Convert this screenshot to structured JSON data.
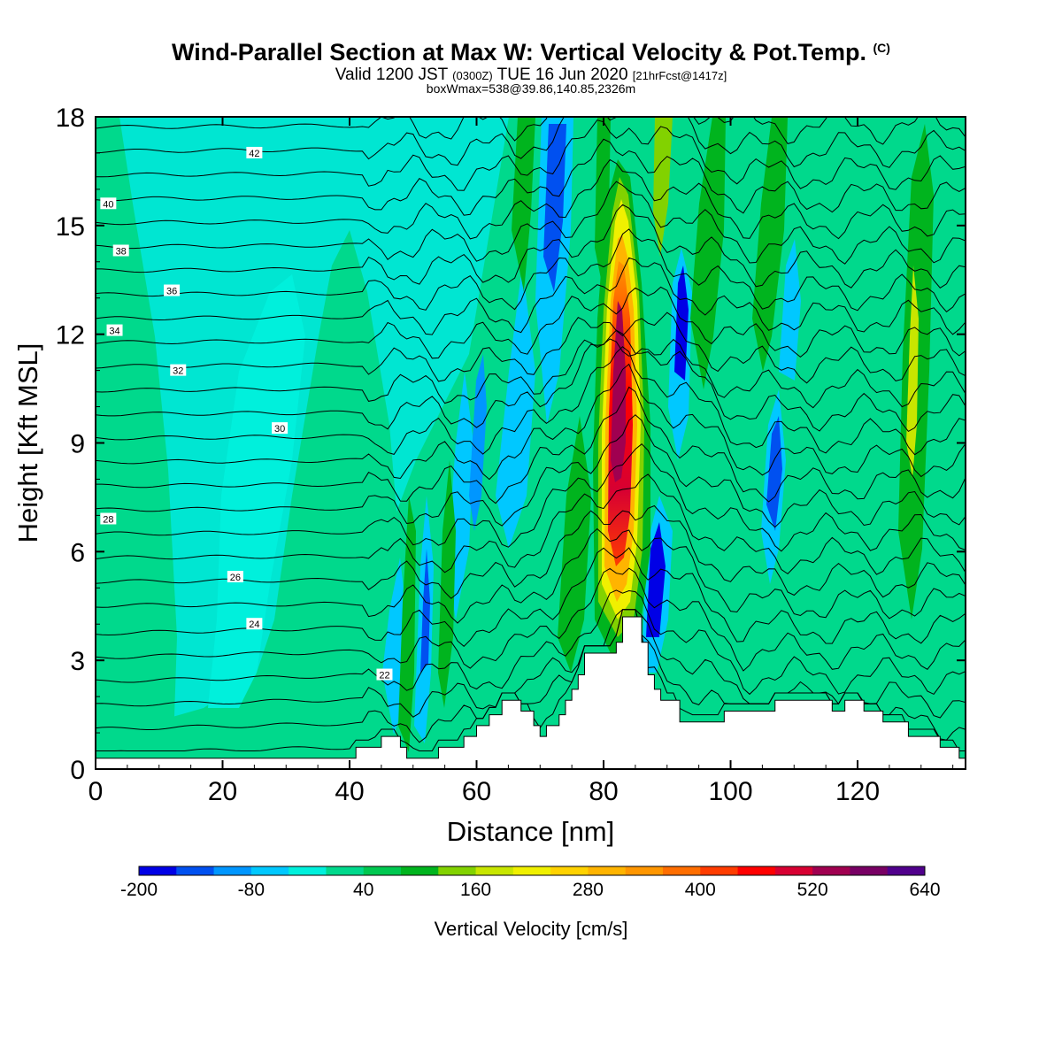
{
  "titles": {
    "main": "Wind-Parallel Section at Max W: Vertical Velocity & Pot.Temp.",
    "main_tag": "(C)",
    "valid_prefix": "Valid 1200 JST",
    "valid_utc": "(0300Z)",
    "valid_date": "TUE 16 Jun 2020",
    "valid_fcst": "[21hrFcst@1417z]",
    "box": "boxWmax=538@39.86,140.85,2326m"
  },
  "chart_data": {
    "type": "heatmap",
    "xlabel": "Distance [nm]",
    "ylabel": "Height [Kft MSL]",
    "xlim": [
      0,
      137
    ],
    "ylim": [
      0,
      18
    ],
    "x_ticks": [
      0,
      20,
      40,
      60,
      80,
      100,
      120
    ],
    "y_ticks": [
      0,
      3,
      6,
      9,
      12,
      15,
      18
    ],
    "colorbar": {
      "title": "Vertical Velocity [cm/s]",
      "tick_labels": [
        "-200",
        "-80",
        "40",
        "160",
        "280",
        "400",
        "520",
        "640"
      ],
      "colors": [
        "#0000e6",
        "#0050f0",
        "#0096ff",
        "#00c8ff",
        "#00f0dc",
        "#00d98c",
        "#00c850",
        "#00b41e",
        "#82d200",
        "#c8e600",
        "#f0f000",
        "#ffd200",
        "#ffb400",
        "#ff9600",
        "#ff6e00",
        "#ff3c00",
        "#ff0000",
        "#d70032",
        "#a00050",
        "#780064",
        "#50008c"
      ]
    },
    "terrain_top_kft": [
      [
        0,
        0.3
      ],
      [
        1,
        0.3
      ],
      [
        40,
        0.3
      ],
      [
        41,
        0.6
      ],
      [
        45,
        0.9
      ],
      [
        48,
        0.6
      ],
      [
        49,
        0.3
      ],
      [
        54,
        0.6
      ],
      [
        58,
        0.9
      ],
      [
        60,
        1.2
      ],
      [
        62,
        1.5
      ],
      [
        64,
        1.9
      ],
      [
        67,
        1.6
      ],
      [
        69,
        1.2
      ],
      [
        70,
        0.9
      ],
      [
        71,
        1.2
      ],
      [
        73,
        1.5
      ],
      [
        74,
        1.9
      ],
      [
        75,
        2.2
      ],
      [
        76,
        2.6
      ],
      [
        77,
        3.2
      ],
      [
        82,
        3.5
      ],
      [
        83,
        4.2
      ],
      [
        86,
        3.5
      ],
      [
        87,
        2.6
      ],
      [
        88,
        2.2
      ],
      [
        89,
        1.9
      ],
      [
        92,
        1.3
      ],
      [
        99,
        1.6
      ],
      [
        107,
        1.9
      ],
      [
        116,
        1.6
      ],
      [
        118,
        1.9
      ],
      [
        121,
        1.6
      ],
      [
        124,
        1.3
      ],
      [
        128,
        0.9
      ],
      [
        133,
        0.6
      ],
      [
        136,
        0.3
      ],
      [
        137,
        0.3
      ]
    ],
    "theta_contours_C": [
      {
        "value": 22,
        "label_at": [
          45.5,
          2.6
        ]
      },
      {
        "value": 24,
        "label_at": [
          25,
          4.0
        ]
      },
      {
        "value": 26,
        "label_at": [
          22,
          5.3
        ]
      },
      {
        "value": 28,
        "label_at": [
          2,
          6.9
        ]
      },
      {
        "value": 30,
        "label_at": [
          29,
          9.4
        ]
      },
      {
        "value": 32,
        "label_at": [
          13,
          11.0
        ]
      },
      {
        "value": 34,
        "label_at": [
          3,
          12.1
        ]
      },
      {
        "value": 36,
        "label_at": [
          12,
          13.2
        ]
      },
      {
        "value": 38,
        "label_at": [
          4,
          14.3
        ]
      },
      {
        "value": 40,
        "label_at": [
          2,
          15.6
        ]
      },
      {
        "value": 42,
        "label_at": [
          25,
          17.0
        ]
      }
    ],
    "w_max_cm_s": 538
  }
}
